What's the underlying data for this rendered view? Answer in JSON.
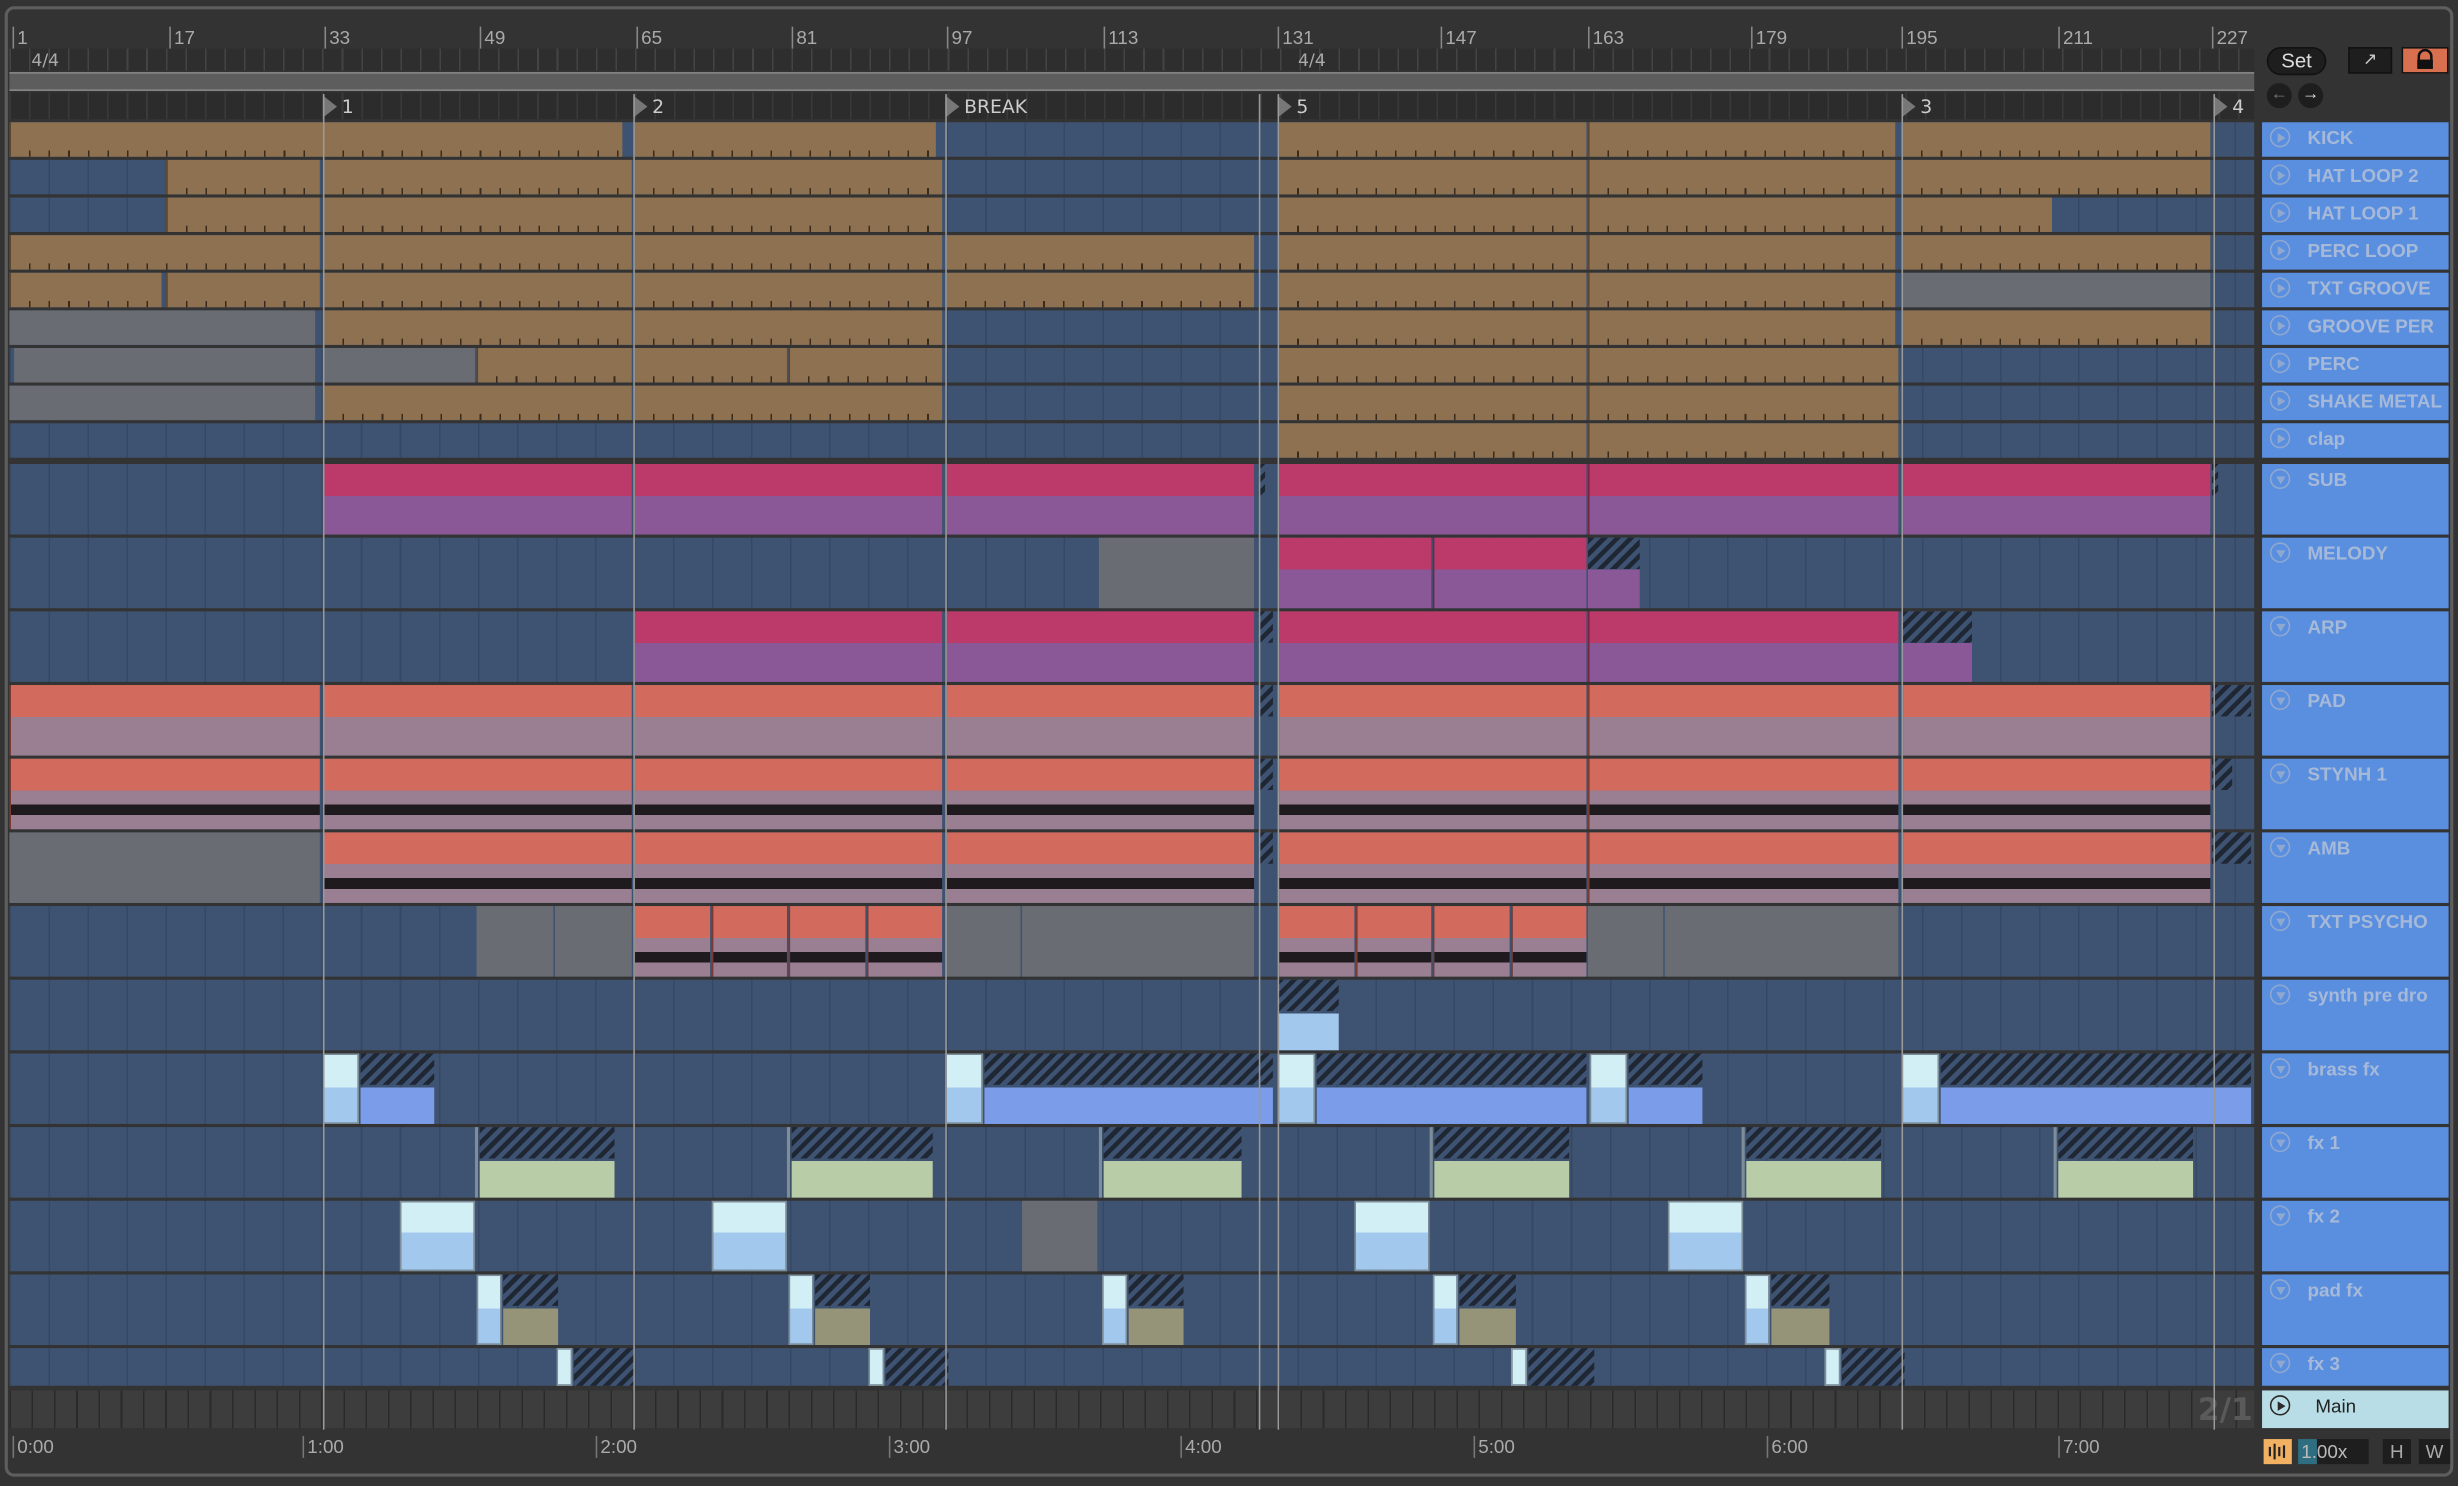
{
  "ruler": {
    "bar_numbers": [
      "1",
      "17",
      "33",
      "49",
      "65",
      "81",
      "97",
      "113",
      "131",
      "147",
      "163",
      "179",
      "195",
      "211",
      "227"
    ],
    "time_signatures": [
      "4/4",
      "4/4"
    ]
  },
  "locators": [
    "1",
    "2",
    "BREAK",
    "5",
    "3",
    "4"
  ],
  "time_labels": [
    "0:00",
    "1:00",
    "2:00",
    "3:00",
    "4:00",
    "5:00",
    "6:00",
    "7:00"
  ],
  "controls": {
    "set_label": "Set",
    "zoom_value": "1.00x",
    "h_label": "H",
    "w_label": "W",
    "grid_label": "2/1"
  },
  "tracks": [
    {
      "name": "KICK",
      "icon": "play-icon"
    },
    {
      "name": "HAT LOOP 2",
      "icon": "play-icon"
    },
    {
      "name": "HAT LOOP 1",
      "icon": "play-icon"
    },
    {
      "name": "PERC LOOP",
      "icon": "play-icon"
    },
    {
      "name": "TXT GROOVE",
      "icon": "play-icon"
    },
    {
      "name": "GROOVE  PER",
      "icon": "play-icon"
    },
    {
      "name": "PERC",
      "icon": "play-icon"
    },
    {
      "name": "SHAKE METAL",
      "icon": "play-icon"
    },
    {
      "name": "clap",
      "icon": "play-icon"
    },
    {
      "name": "SUB",
      "icon": "fold-icon"
    },
    {
      "name": "MELODY",
      "icon": "fold-icon"
    },
    {
      "name": "ARP",
      "icon": "fold-icon"
    },
    {
      "name": "PAD",
      "icon": "fold-icon"
    },
    {
      "name": "STYNH 1",
      "icon": "fold-icon"
    },
    {
      "name": "AMB",
      "icon": "fold-icon"
    },
    {
      "name": "TXT PSYCHO",
      "icon": "fold-icon"
    },
    {
      "name": "synth pre dro",
      "icon": "fold-icon"
    },
    {
      "name": "brass fx",
      "icon": "fold-icon"
    },
    {
      "name": "fx 1",
      "icon": "fold-icon"
    },
    {
      "name": "fx 2",
      "icon": "fold-icon"
    },
    {
      "name": "pad fx",
      "icon": "fold-icon"
    },
    {
      "name": "fx 3",
      "icon": "fold-icon"
    }
  ],
  "main_track": {
    "name": "Main"
  },
  "colors": {
    "track_header": "#5a8fe0",
    "main_header": "#b9dde6",
    "lane_bg": "#3e5372",
    "drum_clip": "#8e7150",
    "disabled_clip": "#696d73",
    "midi_clip": "#bb3a6a",
    "midi_notes": "#8a5797",
    "audio_clip": "#d26b5e",
    "audio_wave": "#9a7e92",
    "lock_active": "#d8704f",
    "zoom_accent": "#f2b063"
  }
}
